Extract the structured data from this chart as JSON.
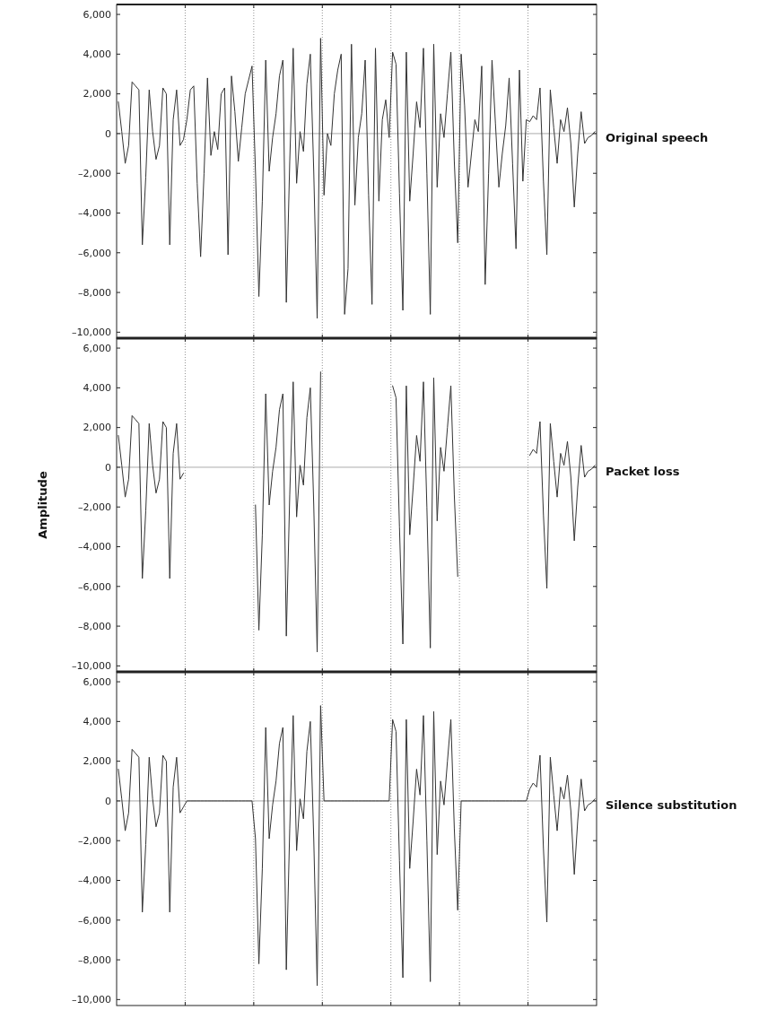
{
  "chart_data": [
    {
      "type": "line",
      "categories": [
        null,
        null,
        null,
        null,
        null,
        null,
        null,
        null,
        null,
        null,
        null,
        null,
        null,
        null,
        null,
        null,
        null,
        null,
        null,
        null,
        null,
        null,
        null,
        null,
        null,
        null,
        null,
        null,
        null,
        null,
        null,
        null,
        null,
        null,
        null,
        null,
        null,
        null,
        null,
        null,
        null,
        null,
        null,
        null,
        null,
        null,
        null,
        null,
        null,
        null,
        null,
        null,
        null,
        null,
        null,
        null,
        null,
        null,
        null,
        null,
        null,
        null,
        null,
        null,
        null,
        null,
        null,
        null,
        null,
        null,
        null,
        null,
        null,
        null,
        null,
        null,
        null,
        null,
        null,
        null,
        null,
        null,
        null,
        null,
        null,
        null,
        null,
        null,
        null,
        null,
        null,
        null,
        null,
        null,
        null,
        null,
        null,
        null,
        null,
        null,
        null,
        null,
        null,
        null,
        null,
        null,
        null,
        null,
        null,
        null,
        null,
        null,
        null,
        null,
        null,
        null,
        null,
        null,
        null,
        null,
        null,
        null,
        null,
        null,
        null,
        null,
        null,
        null,
        null,
        null,
        null,
        null,
        null,
        null,
        null,
        null,
        null,
        null,
        null,
        null
      ],
      "series": [
        {
          "name": "Original speech",
          "color": "#333333",
          "values": [
            1600,
            100,
            -1500,
            -600,
            2600,
            2400,
            2200,
            -5600,
            -2200,
            2200,
            100,
            -1300,
            -600,
            2300,
            2000,
            -5600,
            700,
            2200,
            -600,
            -300,
            700,
            2200,
            2400,
            -2500,
            -6200,
            -2000,
            2800,
            -1100,
            100,
            -800,
            2000,
            2300,
            -6100,
            2900,
            1100,
            -1400,
            300,
            2000,
            2700,
            3400,
            -1900,
            -8200,
            -3400,
            3700,
            -1900,
            -200,
            1000,
            2900,
            3700,
            -8500,
            -1400,
            4300,
            -2500,
            100,
            -900,
            2500,
            4000,
            -1900,
            -9300,
            4800,
            -3100,
            0,
            -600,
            2000,
            3200,
            4000,
            -9100,
            -6800,
            4500,
            -3600,
            -200,
            1000,
            3700,
            -3100,
            -8600,
            4300,
            -3400,
            700,
            1700,
            -200,
            4100,
            3500,
            -3000,
            -8900,
            4100,
            -3400,
            -1000,
            1600,
            300,
            4300,
            -2000,
            -9100,
            4500,
            -2700,
            1000,
            -200,
            2000,
            4100,
            -1400,
            -5500,
            4000,
            1400,
            -2700,
            -1000,
            700,
            100,
            3400,
            -7600,
            -2000,
            3700,
            500,
            -2700,
            -1000,
            400,
            2800,
            -1500,
            -5800,
            3200,
            -2400,
            700,
            600,
            900,
            700,
            2300,
            -2400,
            -6100,
            2200,
            300,
            -1500,
            700,
            100,
            1300,
            -500,
            -3700,
            -1000,
            1100,
            -500,
            -200,
            -100,
            100
          ]
        }
      ],
      "ylim": [
        -10300,
        6500
      ],
      "yticks": [
        {
          "value": 6000,
          "label": "6,000"
        },
        {
          "value": 4000,
          "label": "4,000"
        },
        {
          "value": 2000,
          "label": "2,000"
        },
        {
          "value": 0,
          "label": "0"
        },
        {
          "value": -2000,
          "label": "–2,000"
        },
        {
          "value": -4000,
          "label": "–4,000"
        },
        {
          "value": -6000,
          "label": "–6,000"
        },
        {
          "value": -8000,
          "label": "–8,000"
        },
        {
          "value": -10000,
          "label": "–10,000"
        }
      ],
      "tick_labels": "y",
      "ref_lines": [
        {
          "axis": "y",
          "value": 0,
          "color": "#aaaaaa"
        }
      ]
    },
    {
      "type": "line",
      "ylabel": "Amplitude",
      "categories": [
        null,
        null,
        null,
        null,
        null,
        null,
        null,
        null,
        null,
        null,
        null,
        null,
        null,
        null,
        null,
        null,
        null,
        null,
        null,
        null,
        null,
        null,
        null,
        null,
        null,
        null,
        null,
        null,
        null,
        null,
        null,
        null,
        null,
        null,
        null,
        null,
        null,
        null,
        null,
        null,
        null,
        null,
        null,
        null,
        null,
        null,
        null,
        null,
        null,
        null,
        null,
        null,
        null,
        null,
        null,
        null,
        null,
        null,
        null,
        null,
        null,
        null,
        null,
        null,
        null,
        null,
        null,
        null,
        null,
        null,
        null,
        null,
        null,
        null,
        null,
        null,
        null,
        null,
        null,
        null,
        null,
        null,
        null,
        null,
        null,
        null,
        null,
        null,
        null,
        null,
        null,
        null,
        null,
        null,
        null,
        null,
        null,
        null,
        null,
        null,
        null,
        null,
        null,
        null,
        null,
        null,
        null,
        null,
        null,
        null,
        null,
        null,
        null,
        null,
        null,
        null,
        null,
        null,
        null,
        null,
        null,
        null,
        null,
        null,
        null,
        null,
        null,
        null,
        null,
        null,
        null,
        null,
        null,
        null,
        null,
        null,
        null,
        null,
        null,
        null
      ],
      "series": [
        {
          "name": "Packet loss",
          "color": "#333333",
          "values": [
            1600,
            100,
            -1500,
            -600,
            2600,
            2400,
            2200,
            -5600,
            -2200,
            2200,
            100,
            -1300,
            -600,
            2300,
            2000,
            -5600,
            700,
            2200,
            -600,
            -300,
            null,
            null,
            null,
            null,
            null,
            null,
            null,
            null,
            null,
            null,
            null,
            null,
            null,
            null,
            null,
            null,
            null,
            null,
            null,
            null,
            -1900,
            -8200,
            -3400,
            3700,
            -1900,
            -200,
            1000,
            2900,
            3700,
            -8500,
            -1400,
            4300,
            -2500,
            100,
            -900,
            2500,
            4000,
            -1900,
            -9300,
            4800,
            null,
            null,
            null,
            null,
            null,
            null,
            null,
            null,
            null,
            null,
            null,
            null,
            null,
            null,
            null,
            null,
            null,
            null,
            null,
            null,
            4100,
            3500,
            -3000,
            -8900,
            4100,
            -3400,
            -1000,
            1600,
            300,
            4300,
            -2000,
            -9100,
            4500,
            -2700,
            1000,
            -200,
            2000,
            4100,
            -1400,
            -5500,
            null,
            null,
            null,
            null,
            null,
            null,
            null,
            null,
            null,
            null,
            null,
            null,
            null,
            null,
            null,
            null,
            null,
            null,
            null,
            null,
            600,
            900,
            700,
            2300,
            -2400,
            -6100,
            2200,
            300,
            -1500,
            700,
            100,
            1300,
            -500,
            -3700,
            -1000,
            1100,
            -500,
            -200,
            -100,
            100
          ]
        }
      ],
      "ylim": [
        -10300,
        6500
      ],
      "yticks": [
        {
          "value": 6000,
          "label": "6,000"
        },
        {
          "value": 4000,
          "label": "4,000"
        },
        {
          "value": 2000,
          "label": "2,000"
        },
        {
          "value": 0,
          "label": "0"
        },
        {
          "value": -2000,
          "label": "–2,000"
        },
        {
          "value": -4000,
          "label": "–4,000"
        },
        {
          "value": -6000,
          "label": "–6,000"
        },
        {
          "value": -8000,
          "label": "–8,000"
        },
        {
          "value": -10000,
          "label": "–10,000"
        }
      ],
      "tick_labels": "y",
      "ref_lines": [
        {
          "axis": "y",
          "value": 0,
          "color": "#aaaaaa"
        }
      ]
    },
    {
      "type": "line",
      "categories": [
        null,
        null,
        null,
        null,
        null,
        null,
        null,
        null,
        null,
        null,
        null,
        null,
        null,
        null,
        null,
        null,
        null,
        null,
        null,
        null,
        null,
        null,
        null,
        null,
        null,
        null,
        null,
        null,
        null,
        null,
        null,
        null,
        null,
        null,
        null,
        null,
        null,
        null,
        null,
        null,
        null,
        null,
        null,
        null,
        null,
        null,
        null,
        null,
        null,
        null,
        null,
        null,
        null,
        null,
        null,
        null,
        null,
        null,
        null,
        null,
        null,
        null,
        null,
        null,
        null,
        null,
        null,
        null,
        null,
        null,
        null,
        null,
        null,
        null,
        null,
        null,
        null,
        null,
        null,
        null,
        null,
        null,
        null,
        null,
        null,
        null,
        null,
        null,
        null,
        null,
        null,
        null,
        null,
        null,
        null,
        null,
        null,
        null,
        null,
        null,
        null,
        null,
        null,
        null,
        null,
        null,
        null,
        null,
        null,
        null,
        null,
        null,
        null,
        null,
        null,
        null,
        null,
        null,
        null,
        null,
        null,
        null,
        null,
        null,
        null,
        null,
        null,
        null,
        null,
        null,
        null,
        null,
        null,
        null,
        null,
        null,
        null,
        null,
        null,
        null
      ],
      "series": [
        {
          "name": "Silence substitution",
          "color": "#333333",
          "values": [
            1600,
            100,
            -1500,
            -600,
            2600,
            2400,
            2200,
            -5600,
            -2200,
            2200,
            100,
            -1300,
            -600,
            2300,
            2000,
            -5600,
            700,
            2200,
            -600,
            -300,
            0,
            0,
            0,
            0,
            0,
            0,
            0,
            0,
            0,
            0,
            0,
            0,
            0,
            0,
            0,
            0,
            0,
            0,
            0,
            0,
            -1900,
            -8200,
            -3400,
            3700,
            -1900,
            -200,
            1000,
            2900,
            3700,
            -8500,
            -1400,
            4300,
            -2500,
            100,
            -900,
            2500,
            4000,
            -1900,
            -9300,
            4800,
            0,
            0,
            0,
            0,
            0,
            0,
            0,
            0,
            0,
            0,
            0,
            0,
            0,
            0,
            0,
            0,
            0,
            0,
            0,
            0,
            4100,
            3500,
            -3000,
            -8900,
            4100,
            -3400,
            -1000,
            1600,
            300,
            4300,
            -2000,
            -9100,
            4500,
            -2700,
            1000,
            -200,
            2000,
            4100,
            -1400,
            -5500,
            0,
            0,
            0,
            0,
            0,
            0,
            0,
            0,
            0,
            0,
            0,
            0,
            0,
            0,
            0,
            0,
            0,
            0,
            0,
            0,
            600,
            900,
            700,
            2300,
            -2400,
            -6100,
            2200,
            300,
            -1500,
            700,
            100,
            1300,
            -500,
            -3700,
            -1000,
            1100,
            -500,
            -200,
            -100,
            100
          ]
        }
      ],
      "ylim": [
        -10300,
        6500
      ],
      "yticks": [
        {
          "value": 6000,
          "label": "6,000"
        },
        {
          "value": 4000,
          "label": "4,000"
        },
        {
          "value": 2000,
          "label": "2,000"
        },
        {
          "value": 0,
          "label": "0"
        },
        {
          "value": -2000,
          "label": "–2,000"
        },
        {
          "value": -4000,
          "label": "–4,000"
        },
        {
          "value": -6000,
          "label": "–6,000"
        },
        {
          "value": -8000,
          "label": "–8,000"
        },
        {
          "value": -10000,
          "label": "–10,000"
        }
      ],
      "tick_labels": "y",
      "ref_lines": [
        {
          "axis": "y",
          "value": 0,
          "color": "#aaaaaa"
        }
      ]
    }
  ]
}
